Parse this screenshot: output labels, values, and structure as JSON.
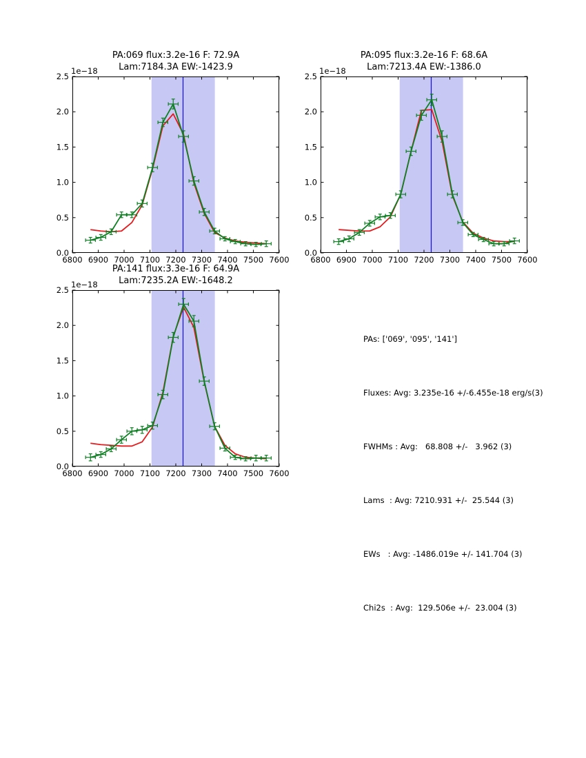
{
  "figure": {
    "background": "#ffffff"
  },
  "colors": {
    "data_green": "#0f7f23",
    "fit_red": "#e41a1c",
    "band_fill": "#c8c8f5",
    "marker_line": "#1717cf",
    "axis": "#000000"
  },
  "summary": {
    "lines": [
      "PAs: ['069', '095', '141']",
      "Fluxes: Avg: 3.235e-16 +/-6.455e-18 erg/s(3)",
      "FWHMs : Avg:   68.808 +/-   3.962 (3)",
      "Lams  : Avg: 7210.931 +/-  25.544 (3)",
      "EWs   : Avg: -1486.019e +/- 141.704 (3)",
      "Chi2s  : Avg:  129.506e +/-  23.004 (3)"
    ]
  },
  "chart_data": [
    {
      "type": "line",
      "title_line1": "PA:069 flux:3.2e-16 F: 72.9A",
      "title_line2": "Lam:7184.3A EW:-1423.9",
      "offset_label": "1e−18",
      "xlim": [
        6800,
        7600
      ],
      "ylim": [
        0,
        2.5
      ],
      "xticks": [
        6800,
        6900,
        7000,
        7100,
        7200,
        7300,
        7400,
        7500,
        7600
      ],
      "ytick_values": [
        0,
        0.5,
        1.0,
        1.5,
        2.0,
        2.5
      ],
      "ytick_labels": [
        "0.0",
        "0.5",
        "1.0",
        "1.5",
        "2.0",
        "2.5"
      ],
      "grid": false,
      "band_x": [
        7106,
        7351
      ],
      "marker_x": 7228,
      "x": [
        6870,
        6910,
        6950,
        6990,
        7030,
        7070,
        7110,
        7150,
        7190,
        7230,
        7270,
        7310,
        7350,
        7390,
        7430,
        7470,
        7510,
        7550
      ],
      "series": [
        {
          "name": "measured spectrum",
          "color": "data_green",
          "values": [
            0.18,
            0.22,
            0.3,
            0.54,
            0.54,
            0.7,
            1.21,
            1.85,
            2.11,
            1.65,
            1.02,
            0.58,
            0.31,
            0.2,
            0.16,
            0.13,
            0.12,
            0.13
          ],
          "yerr": [
            0.04,
            0.04,
            0.04,
            0.04,
            0.04,
            0.05,
            0.06,
            0.06,
            0.07,
            0.08,
            0.06,
            0.05,
            0.04,
            0.03,
            0.03,
            0.03,
            0.03,
            0.04
          ],
          "xerr": 19
        },
        {
          "name": "model fit",
          "color": "fit_red",
          "values": [
            0.33,
            0.31,
            0.3,
            0.31,
            0.43,
            0.68,
            1.19,
            1.8,
            1.97,
            1.68,
            0.99,
            0.56,
            0.29,
            0.21,
            0.17,
            0.15,
            0.14,
            0.13
          ]
        }
      ]
    },
    {
      "type": "line",
      "title_line1": "PA:095 flux:3.2e-16 F: 68.6A",
      "title_line2": "Lam:7213.4A EW:-1386.0",
      "offset_label": "1e−18",
      "xlim": [
        6800,
        7600
      ],
      "ylim": [
        0,
        2.5
      ],
      "xticks": [
        6800,
        6900,
        7000,
        7100,
        7200,
        7300,
        7400,
        7500,
        7600
      ],
      "ytick_values": [
        0,
        0.5,
        1.0,
        1.5,
        2.0,
        2.5
      ],
      "ytick_labels": [
        "0.0",
        "0.5",
        "1.0",
        "1.5",
        "2.0",
        "2.5"
      ],
      "grid": false,
      "band_x": [
        7106,
        7351
      ],
      "marker_x": 7228,
      "x": [
        6870,
        6910,
        6950,
        6990,
        7030,
        7070,
        7110,
        7150,
        7190,
        7230,
        7270,
        7310,
        7350,
        7390,
        7430,
        7470,
        7510,
        7550
      ],
      "series": [
        {
          "name": "measured spectrum",
          "color": "data_green",
          "values": [
            0.16,
            0.2,
            0.29,
            0.42,
            0.51,
            0.53,
            0.83,
            1.44,
            1.95,
            2.17,
            1.65,
            0.83,
            0.43,
            0.26,
            0.19,
            0.13,
            0.13,
            0.17
          ],
          "yerr": [
            0.04,
            0.04,
            0.04,
            0.04,
            0.04,
            0.04,
            0.05,
            0.06,
            0.07,
            0.08,
            0.08,
            0.05,
            0.04,
            0.03,
            0.03,
            0.03,
            0.03,
            0.04
          ],
          "xerr": 19
        },
        {
          "name": "model fit",
          "color": "fit_red",
          "values": [
            0.33,
            0.32,
            0.31,
            0.31,
            0.37,
            0.51,
            0.83,
            1.44,
            2.02,
            2.03,
            1.58,
            0.81,
            0.44,
            0.28,
            0.21,
            0.17,
            0.16,
            0.16
          ]
        }
      ]
    },
    {
      "type": "line",
      "title_line1": "PA:141 flux:3.3e-16 F: 64.9A",
      "title_line2": "Lam:7235.2A EW:-1648.2",
      "offset_label": "1e−18",
      "xlim": [
        6800,
        7600
      ],
      "ylim": [
        0,
        2.5
      ],
      "xticks": [
        6800,
        6900,
        7000,
        7100,
        7200,
        7300,
        7400,
        7500,
        7600
      ],
      "ytick_values": [
        0,
        0.5,
        1.0,
        1.5,
        2.0,
        2.5
      ],
      "ytick_labels": [
        "0.0",
        "0.5",
        "1.0",
        "1.5",
        "2.0",
        "2.5"
      ],
      "grid": false,
      "band_x": [
        7106,
        7351
      ],
      "marker_x": 7228,
      "x": [
        6870,
        6910,
        6950,
        6990,
        7030,
        7070,
        7110,
        7150,
        7190,
        7230,
        7270,
        7310,
        7350,
        7390,
        7430,
        7470,
        7510,
        7550
      ],
      "series": [
        {
          "name": "measured spectrum",
          "color": "data_green",
          "values": [
            0.13,
            0.17,
            0.25,
            0.38,
            0.5,
            0.52,
            0.58,
            1.02,
            1.83,
            2.3,
            2.06,
            1.21,
            0.57,
            0.26,
            0.13,
            0.11,
            0.12,
            0.12
          ],
          "yerr": [
            0.05,
            0.04,
            0.04,
            0.05,
            0.05,
            0.05,
            0.05,
            0.06,
            0.07,
            0.08,
            0.08,
            0.06,
            0.05,
            0.04,
            0.03,
            0.03,
            0.04,
            0.04
          ],
          "xerr": 19
        },
        {
          "name": "model fit",
          "color": "fit_red",
          "values": [
            0.33,
            0.31,
            0.3,
            0.29,
            0.29,
            0.35,
            0.56,
            1.05,
            1.84,
            2.26,
            1.97,
            1.2,
            0.57,
            0.3,
            0.18,
            0.13,
            0.12,
            0.11
          ]
        }
      ]
    }
  ]
}
